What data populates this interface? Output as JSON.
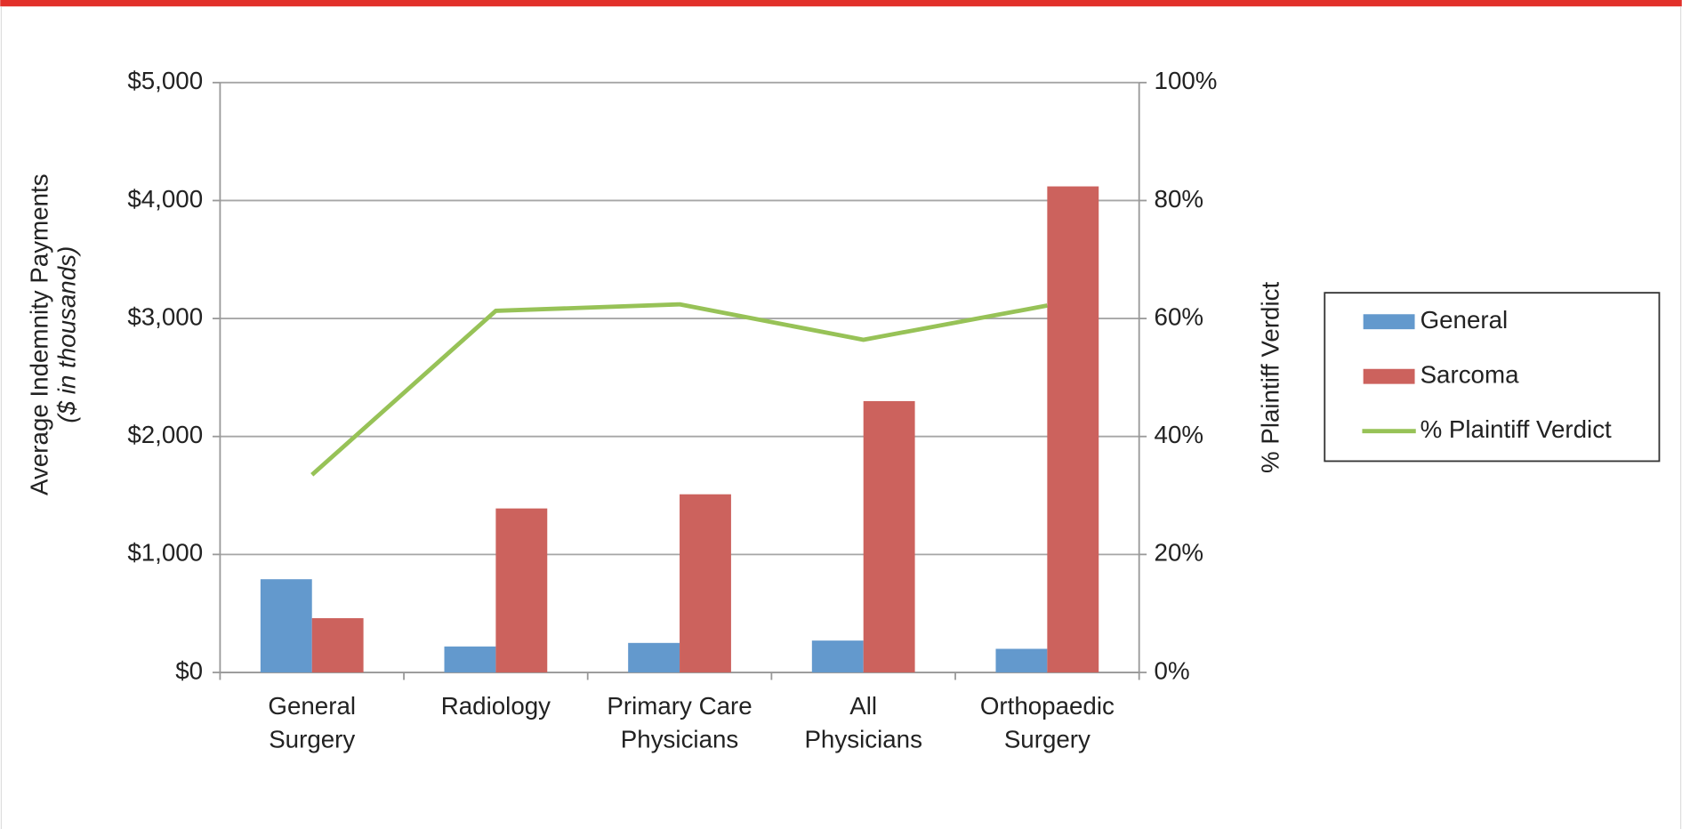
{
  "chart_data": {
    "type": "bar",
    "categories": [
      [
        "General",
        "Surgery"
      ],
      [
        "Radiology"
      ],
      [
        "Primary Care",
        "Physicians"
      ],
      [
        "All",
        "Physicians"
      ],
      [
        "Orthopaedic",
        "Surgery"
      ]
    ],
    "series": [
      {
        "name": "General",
        "color": "#6399cd",
        "type": "bar",
        "values": [
          790,
          220,
          250,
          270,
          200
        ]
      },
      {
        "name": "Sarcoma",
        "color": "#cc625d",
        "type": "bar",
        "values": [
          460,
          1390,
          1510,
          2300,
          4120
        ]
      },
      {
        "name": "% Plaintiff Verdict",
        "color": "#97c257",
        "type": "line",
        "axis": "y2",
        "values": [
          33.5,
          61.3,
          62.4,
          56.4,
          62.2
        ]
      }
    ],
    "ylabel": [
      "Average Indemnity Payments",
      "($ in thousands)"
    ],
    "y2label": "% Plaintiff Verdict",
    "ylim": [
      0,
      5000
    ],
    "yticks": [
      {
        "value": 0,
        "label": "$0"
      },
      {
        "value": 1000,
        "label": "$1,000"
      },
      {
        "value": 2000,
        "label": "$2,000"
      },
      {
        "value": 3000,
        "label": "$3,000"
      },
      {
        "value": 4000,
        "label": "$4,000"
      },
      {
        "value": 5000,
        "label": "$5,000"
      }
    ],
    "y2lim": [
      0,
      100
    ],
    "y2ticks": [
      {
        "value": 0,
        "label": "0%"
      },
      {
        "value": 20,
        "label": "20%"
      },
      {
        "value": 40,
        "label": "40%"
      },
      {
        "value": 60,
        "label": "60%"
      },
      {
        "value": 80,
        "label": "80%"
      },
      {
        "value": 100,
        "label": "100%"
      }
    ],
    "grid": true,
    "legend": "right"
  }
}
